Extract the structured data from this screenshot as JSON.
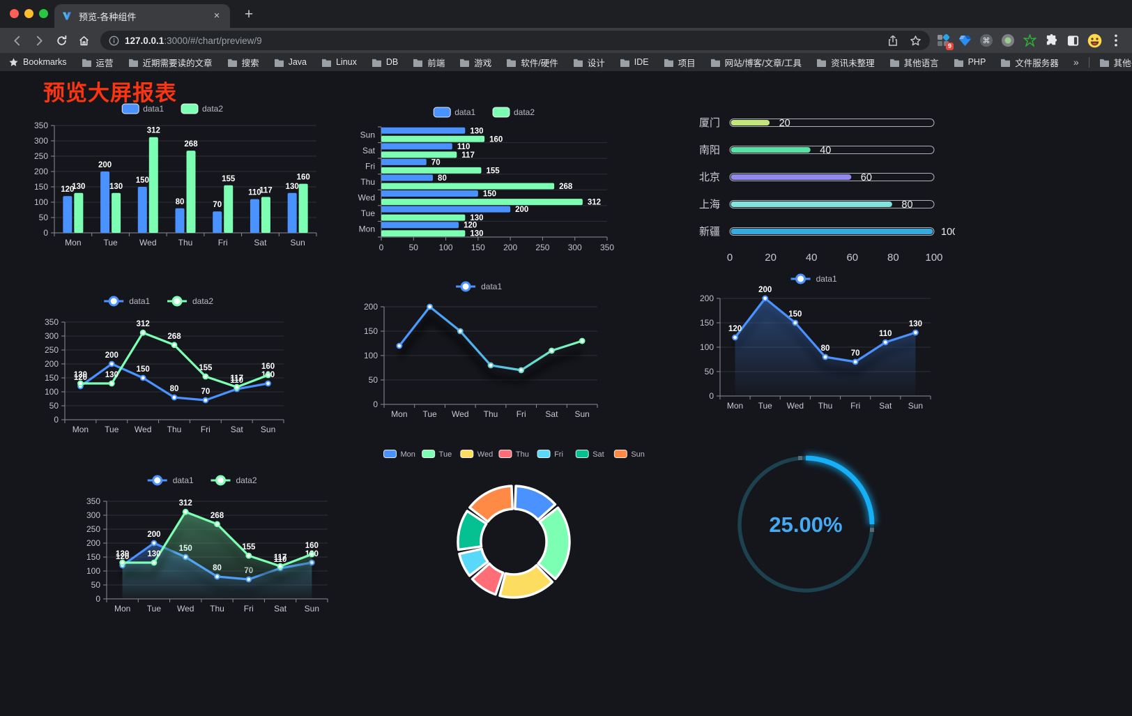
{
  "browser": {
    "tab_title": "预览-各种组件",
    "tab_close": "×",
    "new_tab_button": "+",
    "url_host": "127.0.0.1",
    "url_rest": ":3000/#/chart/preview/9",
    "extension_badge": "9",
    "bookmarks_label": "Bookmarks",
    "bookmark_folders": [
      "运营",
      "近期需要读的文章",
      "搜索",
      "Java",
      "Linux",
      "DB",
      "前端",
      "游戏",
      "软件/硬件",
      "设计",
      "IDE",
      "项目",
      "网站/博客/文章/工具",
      "资讯未整理",
      "其他语言",
      "PHP",
      "文件服务器"
    ],
    "bookmarks_overflow": "»",
    "other_bookmarks": "其他书签"
  },
  "page": {
    "title": "预览大屏报表"
  },
  "chart_data": [
    {
      "id": "bar",
      "type": "bar",
      "categories": [
        "Mon",
        "Tue",
        "Wed",
        "Thu",
        "Fri",
        "Sat",
        "Sun"
      ],
      "series": [
        {
          "name": "data1",
          "color": "#4992ff",
          "values": [
            120,
            200,
            150,
            80,
            70,
            110,
            130
          ]
        },
        {
          "name": "data2",
          "color": "#7cffb2",
          "values": [
            130,
            130,
            312,
            268,
            155,
            117,
            160
          ]
        }
      ],
      "ylim": [
        0,
        350
      ],
      "ystep": 50,
      "legend_position": "top",
      "grid": true
    },
    {
      "id": "hbar",
      "type": "bar-horizontal",
      "categories": [
        "Mon",
        "Tue",
        "Wed",
        "Thu",
        "Fri",
        "Sat",
        "Sun"
      ],
      "series": [
        {
          "name": "data1",
          "color": "#4992ff",
          "values": [
            120,
            200,
            150,
            80,
            70,
            110,
            130
          ]
        },
        {
          "name": "data2",
          "color": "#7cffb2",
          "values": [
            130,
            130,
            312,
            268,
            155,
            117,
            160
          ]
        }
      ],
      "xlim": [
        0,
        350
      ],
      "xstep": 50,
      "legend_position": "top"
    },
    {
      "id": "progress",
      "type": "progress-bars",
      "items": [
        {
          "label": "厦门",
          "value": 20,
          "color": "#c3e57e"
        },
        {
          "label": "南阳",
          "value": 40,
          "color": "#57e2a5"
        },
        {
          "label": "北京",
          "value": 60,
          "color": "#9189ee"
        },
        {
          "label": "上海",
          "value": 80,
          "color": "#80e5df"
        },
        {
          "label": "新疆",
          "value": 100,
          "color": "#37a9dd"
        }
      ],
      "xlim": [
        0,
        100
      ],
      "xstep": 20
    },
    {
      "id": "line2",
      "type": "line",
      "categories": [
        "Mon",
        "Tue",
        "Wed",
        "Thu",
        "Fri",
        "Sat",
        "Sun"
      ],
      "series": [
        {
          "name": "data1",
          "color": "#4992ff",
          "values": [
            120,
            200,
            150,
            80,
            70,
            110,
            130
          ],
          "labels": true
        },
        {
          "name": "data2",
          "color": "#7cffb2",
          "values": [
            130,
            130,
            312,
            268,
            155,
            117,
            160
          ],
          "labels": true
        }
      ],
      "ylim": [
        0,
        350
      ],
      "ystep": 50,
      "legend_position": "top"
    },
    {
      "id": "lineGrad",
      "type": "line",
      "categories": [
        "Mon",
        "Tue",
        "Wed",
        "Thu",
        "Fri",
        "Sat",
        "Sun"
      ],
      "series": [
        {
          "name": "data1",
          "color": "#4992ff",
          "color_end": "#7cffb2",
          "gradient": true,
          "values": [
            120,
            200,
            150,
            80,
            70,
            110,
            130
          ],
          "labels": false
        }
      ],
      "ylim": [
        0,
        200
      ],
      "ystep": 50,
      "legend_position": "top"
    },
    {
      "id": "lineArea",
      "type": "line",
      "categories": [
        "Mon",
        "Tue",
        "Wed",
        "Thu",
        "Fri",
        "Sat",
        "Sun"
      ],
      "series": [
        {
          "name": "data1",
          "color": "#4992ff",
          "values": [
            120,
            200,
            150,
            80,
            70,
            110,
            130
          ],
          "labels": true,
          "area": true
        }
      ],
      "ylim": [
        0,
        200
      ],
      "ystep": 50,
      "legend_position": "top"
    },
    {
      "id": "area2",
      "type": "line",
      "categories": [
        "Mon",
        "Tue",
        "Wed",
        "Thu",
        "Fri",
        "Sat",
        "Sun"
      ],
      "series": [
        {
          "name": "data1",
          "color": "#4992ff",
          "values": [
            120,
            200,
            150,
            80,
            70,
            110,
            130
          ],
          "labels": true,
          "area": true
        },
        {
          "name": "data2",
          "color": "#7cffb2",
          "values": [
            130,
            130,
            312,
            268,
            155,
            117,
            160
          ],
          "labels": true,
          "area": true
        }
      ],
      "ylim": [
        0,
        350
      ],
      "ystep": 50,
      "legend_position": "top"
    },
    {
      "id": "donut",
      "type": "pie",
      "categories": [
        "Mon",
        "Tue",
        "Wed",
        "Thu",
        "Fri",
        "Sat",
        "Sun"
      ],
      "values": [
        120,
        200,
        150,
        80,
        70,
        110,
        130
      ],
      "colors": [
        "#4992ff",
        "#7cffb2",
        "#fddd60",
        "#ff6e76",
        "#58d9f9",
        "#05c091",
        "#ff8a45"
      ],
      "legend_position": "top"
    },
    {
      "id": "gauge",
      "type": "gauge",
      "value": 25,
      "label": "25.00%",
      "color": "#16b0f6",
      "track_color": "#1c4250",
      "text_color": "#46aaf3"
    }
  ]
}
